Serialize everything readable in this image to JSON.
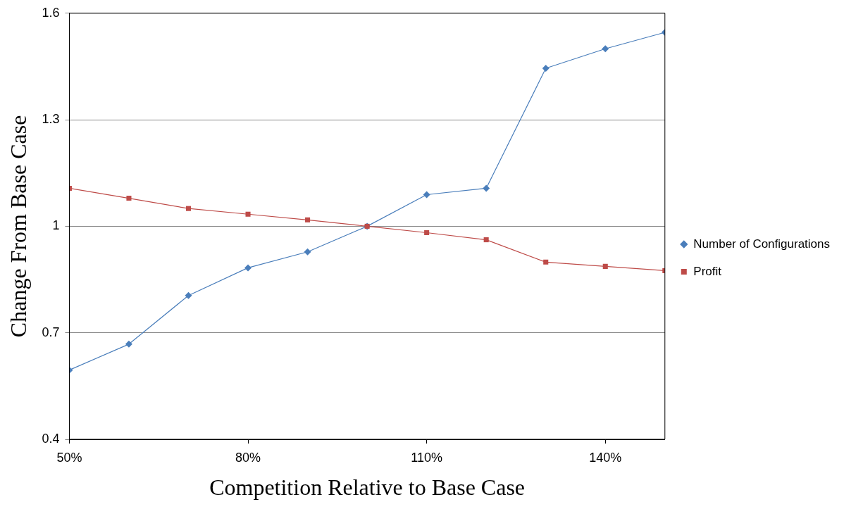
{
  "chart_data": {
    "type": "line",
    "xlabel": "Competition Relative to Base Case",
    "ylabel": "Change From Base Case",
    "x": [
      50,
      60,
      70,
      80,
      90,
      100,
      110,
      120,
      130,
      140,
      150
    ],
    "series": [
      {
        "name": "Number of Configurations",
        "color": "#4a7ebb",
        "marker": "diamond",
        "values": [
          0.595,
          0.668,
          0.805,
          0.883,
          0.928,
          1.0,
          1.089,
          1.107,
          1.445,
          1.5,
          1.546
        ]
      },
      {
        "name": "Profit",
        "color": "#be4b48",
        "marker": "square",
        "values": [
          1.107,
          1.079,
          1.05,
          1.034,
          1.018,
          1.0,
          0.982,
          0.962,
          0.899,
          0.887,
          0.875
        ]
      }
    ],
    "xlim": [
      50,
      150
    ],
    "xticks": [
      {
        "value": 50,
        "label": "50%"
      },
      {
        "value": 80,
        "label": "80%"
      },
      {
        "value": 110,
        "label": "110%"
      },
      {
        "value": 140,
        "label": "140%"
      }
    ],
    "ylim": [
      0.4,
      1.6
    ],
    "yticks": [
      0.4,
      {
        "value": 0.7,
        "label": "0.7"
      },
      1,
      1.3,
      1.6
    ],
    "grid": "y",
    "legend": "right",
    "line_style": "solid"
  }
}
